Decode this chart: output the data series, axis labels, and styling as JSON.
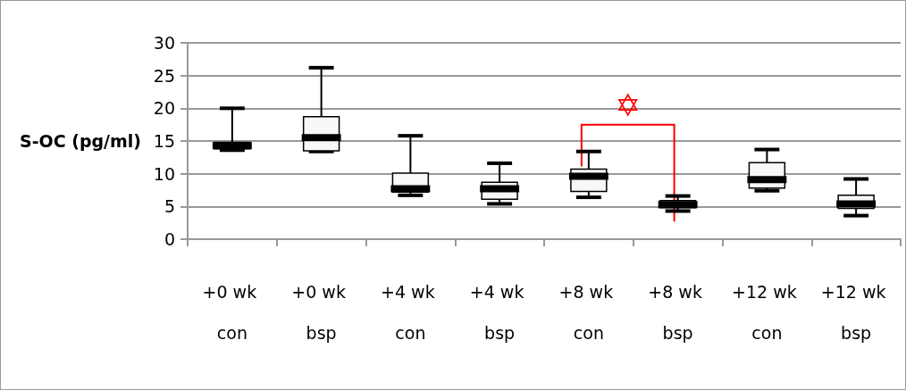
{
  "chart_data": {
    "type": "box",
    "ylabel": "S-OC (pg/ml)",
    "categories": [
      "+0 wk con",
      "+0 wk bsp",
      "+4 wk con",
      "+4 wk bsp",
      "+8 wk con",
      "+8 wk bsp",
      "+12 wk con",
      "+12 wk bsp"
    ],
    "boxes": [
      {
        "low": 13.6,
        "q1": 13.8,
        "median": 14.3,
        "q3": 14.8,
        "high": 20
      },
      {
        "low": 13.4,
        "q1": 13.5,
        "median": 15.5,
        "q3": 18.7,
        "high": 26.2
      },
      {
        "low": 6.7,
        "q1": 7.2,
        "median": 7.7,
        "q3": 10.1,
        "high": 15.8
      },
      {
        "low": 5.4,
        "q1": 6.1,
        "median": 7.7,
        "q3": 8.7,
        "high": 11.6
      },
      {
        "low": 6.4,
        "q1": 7.3,
        "median": 9.6,
        "q3": 10.7,
        "high": 13.4
      },
      {
        "low": 4.3,
        "q1": 4.8,
        "median": 5.3,
        "q3": 5.9,
        "high": 6.6
      },
      {
        "low": 7.4,
        "q1": 7.8,
        "median": 9.1,
        "q3": 11.7,
        "high": 13.7
      },
      {
        "low": 3.6,
        "q1": 4.7,
        "median": 5.4,
        "q3": 6.7,
        "high": 9.2
      }
    ],
    "color": "#000000",
    "ylim": [
      0,
      30
    ],
    "yticks": [
      0,
      5,
      10,
      15,
      20,
      25,
      30
    ],
    "grid": "y",
    "annotations": [
      "✡"
    ]
  }
}
